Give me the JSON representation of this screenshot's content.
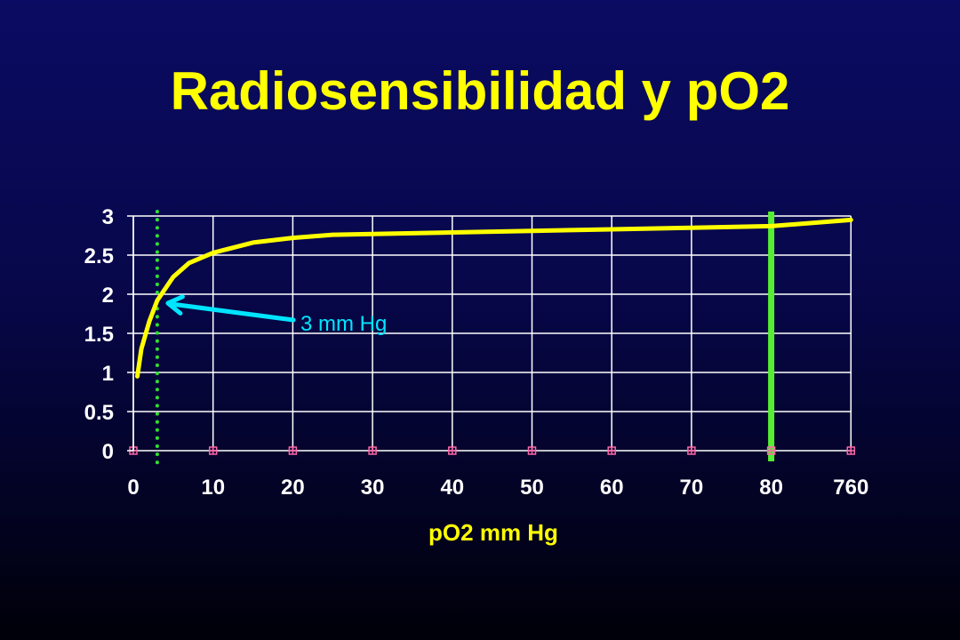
{
  "slide": {
    "title": "Radiosensibilidad y pO2"
  },
  "colors": {
    "background": "#07074a",
    "title": "#ffff00",
    "curve": "#ffff00",
    "grid": "#ffffff",
    "tick_labels": "#ffffff",
    "dotted_marker": "#33dd33",
    "solid_marker": "#55ee33",
    "arrow": "#00e5ff",
    "point_markers": "#ff66aa"
  },
  "chart_data": {
    "type": "line",
    "title": "",
    "xlabel": "pO2 mm Hg",
    "ylabel": "",
    "x_categories": [
      "0",
      "10",
      "20",
      "30",
      "40",
      "50",
      "60",
      "70",
      "80",
      "760"
    ],
    "y_ticks": [
      "0",
      "0.5",
      "1",
      "1.5",
      "2",
      "2.5",
      "3"
    ],
    "ylim": [
      0,
      3
    ],
    "grid": true,
    "legend": "none",
    "series": [
      {
        "x": [
          0.5,
          1,
          2,
          3,
          5,
          7,
          10,
          15,
          20,
          25,
          30,
          40,
          50,
          60,
          70,
          80,
          760
        ],
        "y": [
          0.95,
          1.3,
          1.65,
          1.92,
          2.22,
          2.4,
          2.53,
          2.66,
          2.72,
          2.76,
          2.77,
          2.79,
          2.81,
          2.83,
          2.85,
          2.87,
          2.95
        ]
      }
    ],
    "zero_markers_x": [
      "0",
      "10",
      "20",
      "30",
      "40",
      "50",
      "60",
      "70",
      "80",
      "760"
    ],
    "reference_lines": [
      {
        "x": 3,
        "style": "dotted"
      },
      {
        "x": 80,
        "style": "solid"
      }
    ],
    "annotations": [
      {
        "text": "3 mm Hg",
        "points_to_x": 3,
        "points_to_y": 1.92
      }
    ]
  }
}
